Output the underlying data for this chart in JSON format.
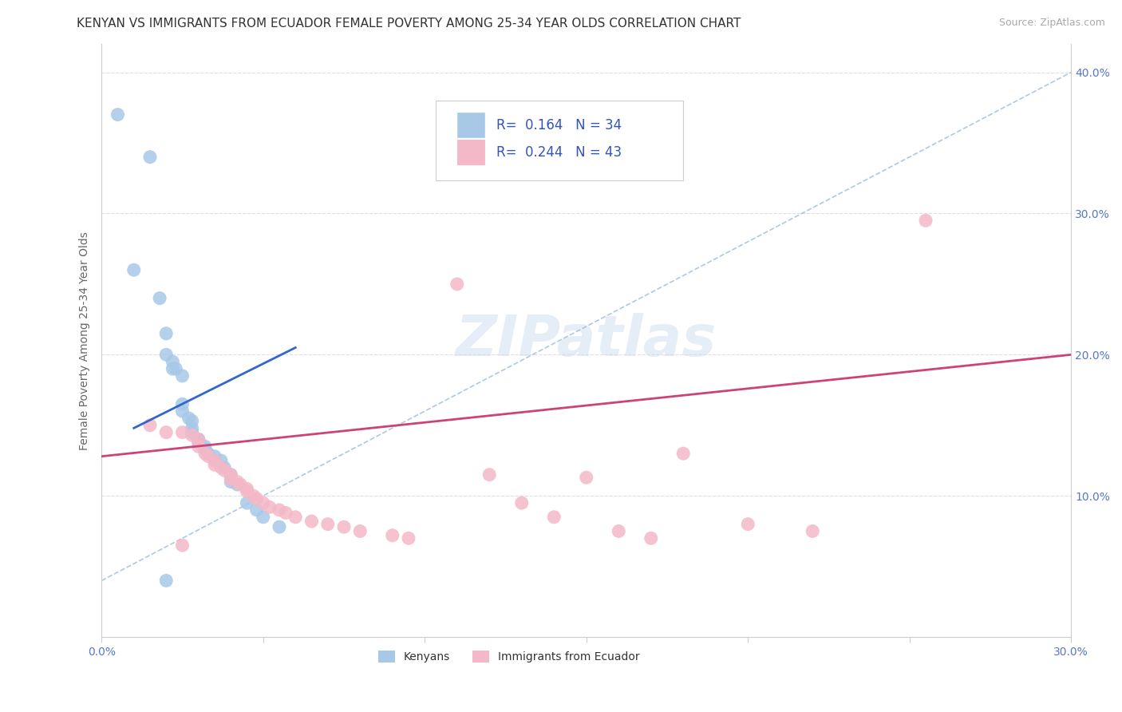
{
  "title": "KENYAN VS IMMIGRANTS FROM ECUADOR FEMALE POVERTY AMONG 25-34 YEAR OLDS CORRELATION CHART",
  "source": "Source: ZipAtlas.com",
  "ylabel": "Female Poverty Among 25-34 Year Olds",
  "xlim": [
    0.0,
    0.3
  ],
  "ylim": [
    0.0,
    0.42
  ],
  "xticks": [
    0.0,
    0.05,
    0.1,
    0.15,
    0.2,
    0.25,
    0.3
  ],
  "yticks": [
    0.1,
    0.2,
    0.3,
    0.4
  ],
  "blue_R": "0.164",
  "blue_N": "34",
  "pink_R": "0.244",
  "pink_N": "43",
  "blue_color": "#a8c8e8",
  "pink_color": "#f4b8c8",
  "blue_line_color": "#3366cc",
  "pink_line_color": "#cc4477",
  "ref_line_color": "#88aacc",
  "background_color": "#ffffff",
  "grid_color": "#ddddee",
  "watermark": "ZIPatlas",
  "title_fontsize": 11,
  "axis_label_fontsize": 10,
  "tick_fontsize": 10,
  "legend_fontsize": 12,
  "blue_scatter": [
    [
      0.005,
      0.37
    ],
    [
      0.01,
      0.26
    ],
    [
      0.015,
      0.34
    ],
    [
      0.018,
      0.24
    ],
    [
      0.02,
      0.215
    ],
    [
      0.02,
      0.2
    ],
    [
      0.022,
      0.19
    ],
    [
      0.022,
      0.195
    ],
    [
      0.023,
      0.19
    ],
    [
      0.025,
      0.185
    ],
    [
      0.025,
      0.165
    ],
    [
      0.025,
      0.16
    ],
    [
      0.027,
      0.155
    ],
    [
      0.028,
      0.153
    ],
    [
      0.028,
      0.148
    ],
    [
      0.028,
      0.145
    ],
    [
      0.03,
      0.14
    ],
    [
      0.03,
      0.14
    ],
    [
      0.03,
      0.138
    ],
    [
      0.032,
      0.135
    ],
    [
      0.032,
      0.133
    ],
    [
      0.033,
      0.13
    ],
    [
      0.035,
      0.128
    ],
    [
      0.035,
      0.125
    ],
    [
      0.037,
      0.125
    ],
    [
      0.038,
      0.12
    ],
    [
      0.04,
      0.115
    ],
    [
      0.04,
      0.11
    ],
    [
      0.042,
      0.108
    ],
    [
      0.045,
      0.095
    ],
    [
      0.048,
      0.09
    ],
    [
      0.05,
      0.085
    ],
    [
      0.055,
      0.078
    ],
    [
      0.02,
      0.04
    ]
  ],
  "pink_scatter": [
    [
      0.015,
      0.15
    ],
    [
      0.02,
      0.145
    ],
    [
      0.025,
      0.145
    ],
    [
      0.028,
      0.143
    ],
    [
      0.03,
      0.14
    ],
    [
      0.03,
      0.135
    ],
    [
      0.032,
      0.13
    ],
    [
      0.033,
      0.128
    ],
    [
      0.035,
      0.125
    ],
    [
      0.035,
      0.122
    ],
    [
      0.037,
      0.12
    ],
    [
      0.038,
      0.118
    ],
    [
      0.04,
      0.115
    ],
    [
      0.04,
      0.112
    ],
    [
      0.042,
      0.11
    ],
    [
      0.043,
      0.108
    ],
    [
      0.045,
      0.105
    ],
    [
      0.045,
      0.103
    ],
    [
      0.047,
      0.1
    ],
    [
      0.048,
      0.098
    ],
    [
      0.05,
      0.095
    ],
    [
      0.052,
      0.092
    ],
    [
      0.055,
      0.09
    ],
    [
      0.057,
      0.088
    ],
    [
      0.06,
      0.085
    ],
    [
      0.065,
      0.082
    ],
    [
      0.07,
      0.08
    ],
    [
      0.075,
      0.078
    ],
    [
      0.08,
      0.075
    ],
    [
      0.09,
      0.072
    ],
    [
      0.095,
      0.07
    ],
    [
      0.11,
      0.25
    ],
    [
      0.12,
      0.115
    ],
    [
      0.13,
      0.095
    ],
    [
      0.14,
      0.085
    ],
    [
      0.15,
      0.113
    ],
    [
      0.16,
      0.075
    ],
    [
      0.17,
      0.07
    ],
    [
      0.18,
      0.13
    ],
    [
      0.2,
      0.08
    ],
    [
      0.22,
      0.075
    ],
    [
      0.255,
      0.295
    ],
    [
      0.025,
      0.065
    ]
  ]
}
